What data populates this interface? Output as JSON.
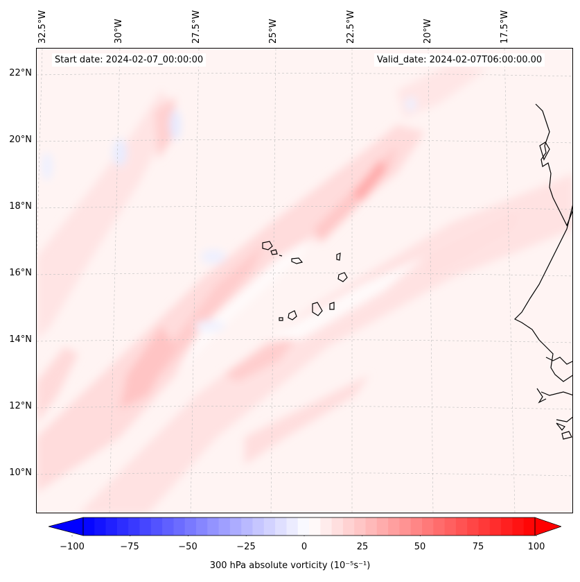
{
  "header": {
    "start_date": "Start date: 2024-02-07_00:00:00",
    "valid_date": "Valid_date: 2024-02-07T06:00:00.00"
  },
  "map": {
    "longitude_labels": [
      "32.5°W",
      "30°W",
      "27.5°W",
      "25°W",
      "22.5°W",
      "20°W",
      "17.5°W"
    ],
    "latitude_labels": [
      "22°N",
      "20°N",
      "18°N",
      "16°N",
      "14°N",
      "12°N",
      "10°N"
    ],
    "field": "300 hPa absolute vorticity",
    "colors": {
      "negative": "#0000ff",
      "neutral": "#ffffff",
      "positive": "#ff0000"
    }
  },
  "colorbar": {
    "ticks": [
      "−100",
      "−75",
      "−50",
      "−25",
      "0",
      "25",
      "50",
      "75",
      "100"
    ],
    "tick_values": [
      -100,
      -75,
      -50,
      -25,
      0,
      25,
      50,
      75,
      100
    ],
    "label": "300 hPa absolute vorticity (10⁻⁵s⁻¹)"
  }
}
